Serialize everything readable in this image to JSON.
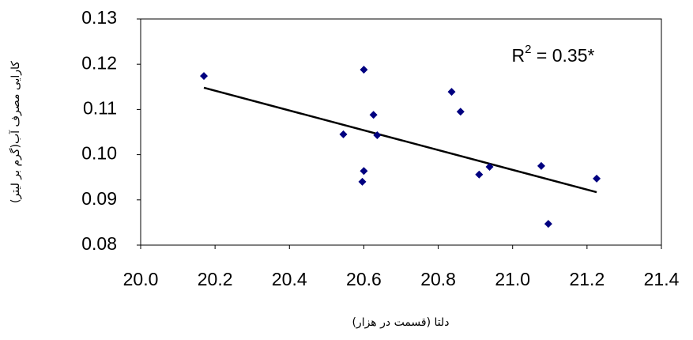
{
  "chart_data": {
    "type": "scatter",
    "x": [
      20.17,
      20.6,
      20.626,
      20.545,
      20.636,
      20.6,
      20.596,
      20.836,
      20.86,
      20.91,
      20.938,
      21.077,
      21.096,
      21.226
    ],
    "y": [
      0.1174,
      0.1188,
      0.1088,
      0.1045,
      0.1043,
      0.0964,
      0.094,
      0.1139,
      0.1095,
      0.0956,
      0.0973,
      0.0975,
      0.0847,
      0.0947
    ],
    "color": "#000080",
    "trendline": {
      "x": [
        20.17,
        21.226
      ],
      "y": [
        0.1148,
        0.0917
      ],
      "color": "#000000"
    },
    "annotation": {
      "base": "R",
      "sup": "2",
      "rest": " = 0.35*"
    },
    "xlim": [
      20.0,
      21.4
    ],
    "xticks": [
      {
        "value": 20.0,
        "label": "20.0"
      },
      20.2,
      20.4,
      20.6,
      20.8,
      {
        "value": 21.0,
        "label": "21.0"
      },
      21.2,
      21.4
    ],
    "ylim": [
      0.08,
      0.13
    ],
    "yticks": [
      0.08,
      0.09,
      {
        "value": 0.1,
        "label": "0.10"
      },
      0.11,
      0.12,
      0.13
    ],
    "xlabel": "دلتا (قسمت در هزار)",
    "ylabel": "کارایی مصرف آب(گرم بر لیتر)"
  }
}
